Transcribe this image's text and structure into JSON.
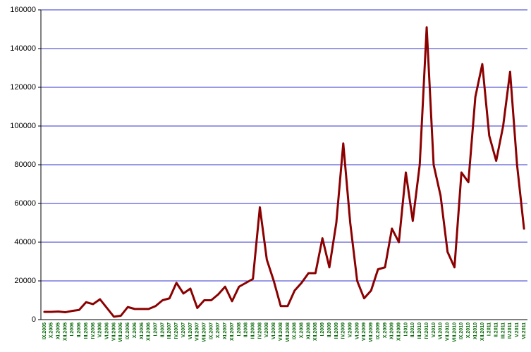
{
  "chart_data": {
    "type": "line",
    "categories": [
      "IX.2005",
      "X.2005",
      "XI.2005",
      "XII.2005",
      "I.2006",
      "II.2006",
      "III.2006",
      "IV.2006",
      "V.2006",
      "VI.2006",
      "VII.2006",
      "VIII.2006",
      "IX.2006",
      "X.2006",
      "XI.2006",
      "XII.2006",
      "I.2007",
      "II.2007",
      "III.2007",
      "IV.2007",
      "V.2007",
      "VI.2007",
      "VII.2007",
      "VIII.2007",
      "IX.2007",
      "X.2007",
      "XI.2007",
      "XII.2007",
      "I.2008",
      "II.2008",
      "III.2008",
      "IV.2008",
      "V.2008",
      "VI.2008",
      "VII.2008",
      "VIII.2008",
      "IX.2008",
      "X.2008",
      "XI.2008",
      "XII.2008",
      "I.2009",
      "II.2009",
      "III.2009",
      "IV.2009",
      "V.2009",
      "VI.2009",
      "VII.2009",
      "VIII.2009",
      "IX.2009",
      "X.2009",
      "XI.2009",
      "XII.2009",
      "I.2010",
      "II.2010",
      "III.2010",
      "IV.2010",
      "V.2010",
      "VI.2010",
      "VII.2010",
      "VIII.2010",
      "IX.2010",
      "X.2010",
      "XI.2010",
      "XII.2010",
      "I.2011",
      "II.2011",
      "III.2011",
      "IV.2011",
      "V.2011",
      "VI.2011"
    ],
    "series": [
      {
        "color": "#8b0000",
        "values": [
          4000,
          4000,
          4200,
          3800,
          4500,
          5000,
          9000,
          8000,
          10500,
          6000,
          1500,
          2000,
          6500,
          5500,
          5500,
          5500,
          7000,
          10000,
          11000,
          19000,
          13500,
          16000,
          6000,
          10000,
          10000,
          13000,
          17000,
          9500,
          17000,
          19000,
          21000,
          58000,
          31000,
          20000,
          7000,
          7000,
          15000,
          19000,
          24000,
          24000,
          42000,
          27000,
          50000,
          91000,
          50000,
          20000,
          11000,
          15000,
          26000,
          27000,
          47000,
          40000,
          76000,
          51000,
          80000,
          151000,
          80000,
          64000,
          35000,
          27000,
          76000,
          71000,
          115000,
          132000,
          95000,
          82000,
          100000,
          128000,
          80000,
          47000
        ]
      }
    ],
    "ylim": [
      0,
      160000
    ],
    "yticks": [
      0,
      20000,
      40000,
      60000,
      80000,
      100000,
      120000,
      140000,
      160000
    ],
    "grid": true,
    "grid_color": "#3333cc"
  }
}
